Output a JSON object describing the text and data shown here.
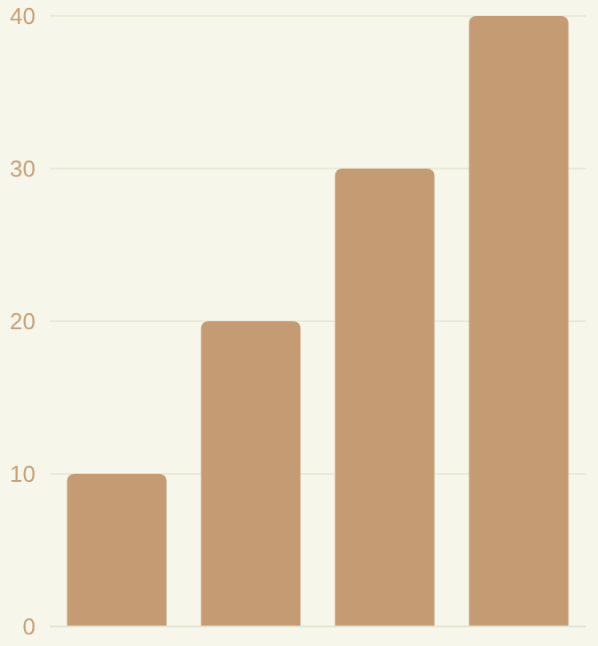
{
  "chart_data": {
    "type": "bar",
    "categories": [
      null,
      null,
      null,
      null
    ],
    "values": [
      10,
      20,
      30,
      40
    ],
    "color": "#c49b73",
    "ylim": [
      0,
      40
    ],
    "yticks": [
      0,
      10,
      20,
      30,
      40
    ],
    "grid": "y",
    "tick_labels": "y"
  }
}
